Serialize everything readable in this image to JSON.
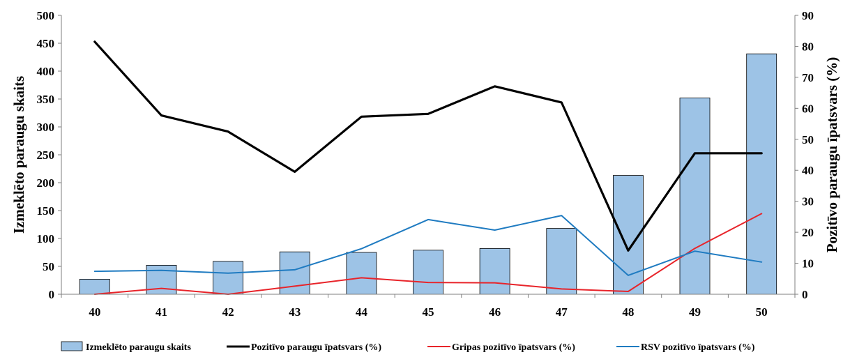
{
  "chart_data": {
    "type": "bar",
    "categories": [
      "40",
      "41",
      "42",
      "43",
      "44",
      "45",
      "46",
      "47",
      "48",
      "49",
      "50"
    ],
    "series": [
      {
        "name": "Izmeklēto paraugu skaits",
        "kind": "bar",
        "axis": "left",
        "color": "#9dc3e6",
        "values": [
          27,
          52,
          59,
          76,
          75,
          79,
          82,
          118,
          213,
          352,
          431
        ]
      },
      {
        "name": "Pozitīvo paraugu īpatsvars (%)",
        "kind": "line",
        "axis": "right",
        "color": "#000000",
        "values": [
          81.5,
          57.7,
          52.5,
          39.5,
          57.3,
          58.2,
          67.1,
          61.9,
          14.1,
          45.5,
          45.5
        ]
      },
      {
        "name": "Gripas pozitīvo  īpatsvars (%)",
        "kind": "line",
        "axis": "right",
        "color": "#e8242a",
        "values": [
          0,
          1.9,
          0,
          2.6,
          5.3,
          3.8,
          3.7,
          1.7,
          0.9,
          14.8,
          26.0
        ]
      },
      {
        "name": "RSV pozitīvo īpatsvars (%)",
        "kind": "line",
        "axis": "right",
        "color": "#1f7bc1",
        "values": [
          7.4,
          7.7,
          6.8,
          7.9,
          14.7,
          24.1,
          20.7,
          25.4,
          6.1,
          13.9,
          10.4
        ]
      }
    ],
    "ylabel": "Izmeklēto paraugu skaits",
    "ylabel_right": "Pozitīvo paraugu īpatsvars (%)",
    "ylim": [
      0,
      500
    ],
    "ylim_right": [
      0,
      90
    ],
    "yticks": [
      "0",
      "50",
      "100",
      "150",
      "200",
      "250",
      "300",
      "350",
      "400",
      "450",
      "500"
    ],
    "yticks_right": [
      "0",
      "10",
      "20",
      "30",
      "40",
      "50",
      "60",
      "70",
      "80",
      "90"
    ],
    "grid": false,
    "legend_position": "bottom"
  }
}
